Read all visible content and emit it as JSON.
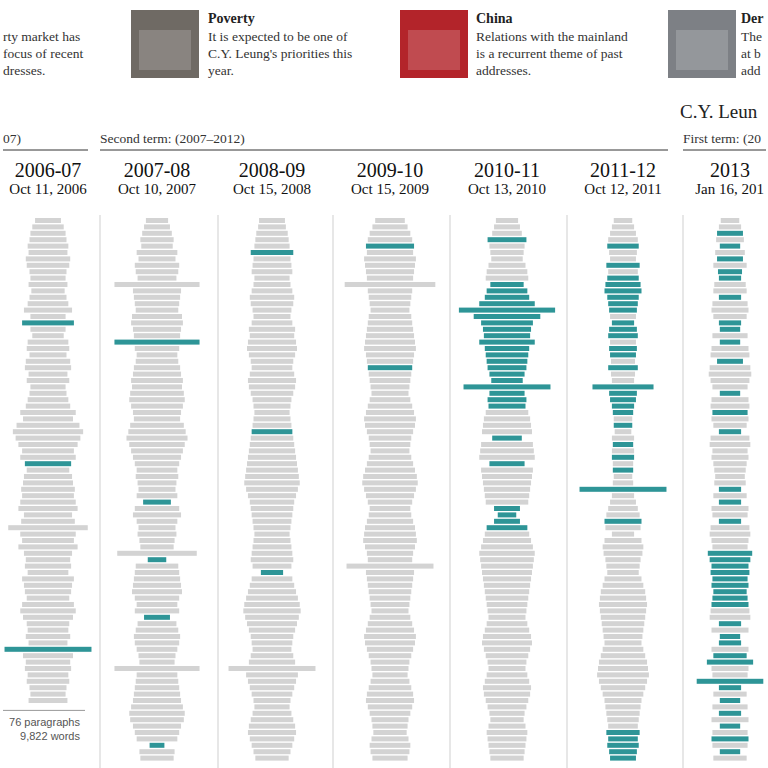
{
  "header": [
    {
      "lines": [
        "rty market has",
        "focus of recent",
        "dresses."
      ]
    },
    {
      "title": "Poverty",
      "lines": [
        "It is expected to be one of",
        "C.Y. Leung's priorities this",
        "year."
      ]
    },
    {
      "title": "China",
      "lines": [
        "Relations with the mainland",
        "is a recurrent theme of past",
        "addresses."
      ]
    },
    {
      "title": "Der",
      "lines": [
        "The",
        "at b",
        "add"
      ]
    }
  ],
  "chart_data": {
    "type": "paragraph_strips",
    "colors": [
      "#d3d3d3",
      "#2e9597"
    ],
    "leader": {
      "label": "C.Y. Leun",
      "series": 6
    },
    "terms": [
      {
        "label": "07)",
        "first": 0,
        "last": 0
      },
      {
        "label": "Second term: (2007–2012)",
        "first": 1,
        "last": 5
      },
      {
        "label": "First term: (20",
        "first": 6,
        "last": 6
      }
    ],
    "series": [
      {
        "name": "2006-07",
        "date": "Oct 11, 2006",
        "notes": [
          "76 paragraphs",
          "9,822 words"
        ],
        "highlight": [
          16,
          38,
          67
        ],
        "values": [
          70,
          85,
          95,
          100,
          110,
          105,
          120,
          115,
          100,
          95,
          105,
          90,
          100,
          110,
          130,
          95,
          140,
          95,
          85,
          110,
          115,
          100,
          120,
          125,
          105,
          115,
          95,
          100,
          110,
          120,
          150,
          135,
          170,
          190,
          175,
          160,
          140,
          150,
          125,
          115,
          130,
          135,
          145,
          140,
          150,
          160,
          130,
          145,
          215,
          150,
          140,
          160,
          130,
          120,
          125,
          110,
          140,
          130,
          125,
          115,
          140,
          150,
          135,
          115,
          110,
          120,
          105,
          235,
          135,
          120,
          125,
          110,
          115,
          100,
          95,
          105
        ]
      },
      {
        "name": "2007-08",
        "date": "Oct 10, 2007",
        "highlight": [
          19,
          44,
          53,
          62,
          82
        ],
        "values": [
          60,
          70,
          80,
          90,
          85,
          110,
          100,
          120,
          115,
          105,
          230,
          130,
          125,
          120,
          115,
          135,
          140,
          130,
          125,
          230,
          120,
          110,
          115,
          125,
          130,
          140,
          135,
          145,
          150,
          140,
          130,
          125,
          145,
          155,
          165,
          150,
          140,
          130,
          120,
          110,
          115,
          105,
          100,
          110,
          75,
          120,
          130,
          110,
          100,
          105,
          95,
          90,
          215,
          50,
          115,
          120,
          125,
          130,
          135,
          120,
          110,
          120,
          70,
          105,
          115,
          125,
          120,
          110,
          100,
          95,
          230,
          110,
          115,
          120,
          125,
          130,
          140,
          150,
          145,
          130,
          120,
          110,
          40,
          95,
          90
        ]
      },
      {
        "name": "2008-09",
        "date": "Oct 15, 2008",
        "highlight": [
          5,
          33,
          55
        ],
        "values": [
          70,
          75,
          85,
          90,
          95,
          115,
          100,
          105,
          110,
          95,
          100,
          110,
          120,
          115,
          105,
          100,
          110,
          125,
          120,
          130,
          135,
          125,
          115,
          110,
          120,
          130,
          125,
          115,
          105,
          100,
          95,
          100,
          105,
          110,
          115,
          120,
          125,
          130,
          135,
          140,
          145,
          150,
          140,
          130,
          120,
          115,
          110,
          105,
          100,
          95,
          100,
          105,
          110,
          115,
          105,
          60,
          110,
          120,
          130,
          140,
          150,
          155,
          145,
          135,
          125,
          115,
          110,
          105,
          115,
          125,
          235,
          140,
          130,
          120,
          110,
          100,
          95,
          105,
          115,
          125,
          130,
          120,
          110,
          100,
          90
        ]
      },
      {
        "name": "2009-10",
        "date": "Oct 15, 2009",
        "highlight": [
          4,
          23
        ],
        "values": [
          80,
          95,
          110,
          120,
          130,
          125,
          140,
          135,
          130,
          125,
          245,
          120,
          115,
          110,
          105,
          115,
          120,
          125,
          130,
          135,
          140,
          130,
          125,
          120,
          115,
          110,
          105,
          100,
          110,
          120,
          130,
          140,
          135,
          125,
          115,
          110,
          105,
          115,
          125,
          135,
          145,
          150,
          140,
          130,
          120,
          110,
          115,
          125,
          135,
          140,
          145,
          135,
          125,
          120,
          235,
          130,
          125,
          120,
          115,
          110,
          105,
          100,
          110,
          120,
          130,
          140,
          135,
          125,
          115,
          105,
          100,
          95,
          105,
          115,
          125,
          130,
          120,
          110,
          100,
          95,
          90,
          100,
          110,
          105,
          95
        ]
      },
      {
        "name": "2010-11",
        "date": "Oct 13, 2010",
        "highlight": [
          3,
          10,
          11,
          12,
          13,
          14,
          15,
          16,
          17,
          18,
          19,
          20,
          21,
          22,
          23,
          24,
          25,
          26,
          27,
          28,
          29,
          34,
          38,
          45,
          46,
          47,
          48
        ],
        "values": [
          60,
          70,
          80,
          105,
          95,
          90,
          85,
          100,
          110,
          115,
          90,
          110,
          120,
          150,
          260,
          180,
          140,
          130,
          125,
          150,
          120,
          115,
          110,
          105,
          95,
          85,
          235,
          95,
          105,
          100,
          115,
          125,
          130,
          135,
          80,
          140,
          145,
          150,
          95,
          140,
          135,
          130,
          125,
          120,
          115,
          70,
          50,
          70,
          110,
          120,
          130,
          140,
          150,
          145,
          140,
          135,
          130,
          125,
          120,
          115,
          110,
          105,
          100,
          110,
          120,
          130,
          135,
          125,
          115,
          105,
          100,
          110,
          120,
          130,
          125,
          115,
          105,
          95,
          90,
          100,
          110,
          105,
          100,
          95,
          90
        ]
      },
      {
        "name": "2011-12",
        "date": "Oct 12, 2011",
        "highlight": [
          4,
          7,
          9,
          10,
          11,
          12,
          13,
          14,
          16,
          17,
          18,
          20,
          21,
          23,
          26,
          27,
          28,
          29,
          30,
          32,
          35,
          37,
          39,
          42,
          47,
          80,
          81,
          82,
          83,
          84
        ],
        "values": [
          50,
          60,
          70,
          80,
          85,
          75,
          70,
          90,
          80,
          85,
          95,
          100,
          85,
          80,
          75,
          70,
          60,
          75,
          80,
          70,
          75,
          70,
          65,
          80,
          65,
          60,
          165,
          75,
          70,
          60,
          55,
          50,
          50,
          45,
          60,
          55,
          60,
          60,
          55,
          55,
          50,
          55,
          235,
          60,
          70,
          80,
          90,
          100,
          95,
          60,
          100,
          110,
          105,
          95,
          90,
          85,
          100,
          110,
          120,
          125,
          130,
          125,
          120,
          115,
          110,
          105,
          100,
          110,
          120,
          130,
          135,
          140,
          130,
          120,
          110,
          100,
          95,
          90,
          85,
          80,
          90,
          80,
          85,
          75,
          70
        ]
      },
      {
        "name": "2013",
        "date": "Jan 16, 201",
        "highlight": [
          2,
          4,
          6,
          8,
          9,
          12,
          16,
          17,
          19,
          22,
          27,
          30,
          33,
          42,
          44,
          47,
          52,
          53,
          54,
          55,
          56,
          57,
          58,
          59,
          60,
          63,
          65,
          66,
          68,
          69,
          72,
          73,
          75,
          77,
          79,
          81,
          83
        ],
        "values": [
          50,
          60,
          70,
          75,
          55,
          80,
          70,
          90,
          65,
          60,
          85,
          90,
          60,
          95,
          100,
          90,
          60,
          55,
          95,
          55,
          100,
          105,
          70,
          110,
          115,
          105,
          95,
          55,
          100,
          105,
          95,
          100,
          90,
          60,
          105,
          110,
          95,
          100,
          90,
          85,
          80,
          85,
          60,
          90,
          60,
          100,
          95,
          60,
          105,
          110,
          100,
          95,
          120,
          110,
          100,
          105,
          95,
          100,
          90,
          95,
          100,
          105,
          110,
          60,
          100,
          55,
          60,
          100,
          90,
          125,
          100,
          95,
          180,
          60,
          90,
          55,
          95,
          60,
          100,
          55,
          95,
          100,
          95,
          55,
          90
        ]
      }
    ]
  }
}
